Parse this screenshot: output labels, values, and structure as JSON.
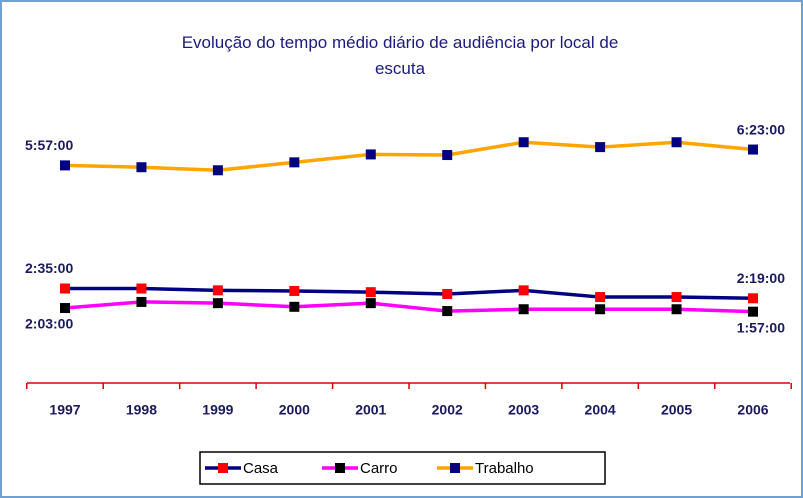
{
  "chart_data": {
    "type": "line",
    "title": "Evolução do tempo médio diário de audiência por local de escuta",
    "categories": [
      "1997",
      "1998",
      "1999",
      "2000",
      "2001",
      "2002",
      "2003",
      "2004",
      "2005",
      "2006"
    ],
    "ylim": [
      0,
      420
    ],
    "legend": "bottom",
    "series": [
      {
        "name": "Casa",
        "color": "#000080",
        "marker_color": "#ff0000",
        "values": [
          155,
          155,
          152,
          151,
          149,
          146,
          152,
          141,
          141,
          139
        ],
        "value_labels": [
          "2:35:00",
          null,
          null,
          null,
          null,
          null,
          null,
          null,
          null,
          "2:19:00"
        ]
      },
      {
        "name": "Carro",
        "color": "#ff00ff",
        "marker_color": "#000000",
        "values": [
          123,
          133,
          131,
          125,
          131,
          118,
          121,
          121,
          121,
          117
        ],
        "value_labels": [
          "2:03:00",
          null,
          null,
          null,
          null,
          null,
          null,
          null,
          null,
          "1:57:00"
        ]
      },
      {
        "name": "Trabalho",
        "color": "#ffa500",
        "marker_color": "#000080",
        "values": [
          357,
          354,
          349,
          362,
          375,
          374,
          395,
          387,
          395,
          383
        ],
        "value_labels": [
          "5:57:00",
          null,
          null,
          null,
          null,
          null,
          null,
          null,
          null,
          "6:23:00"
        ]
      }
    ]
  }
}
